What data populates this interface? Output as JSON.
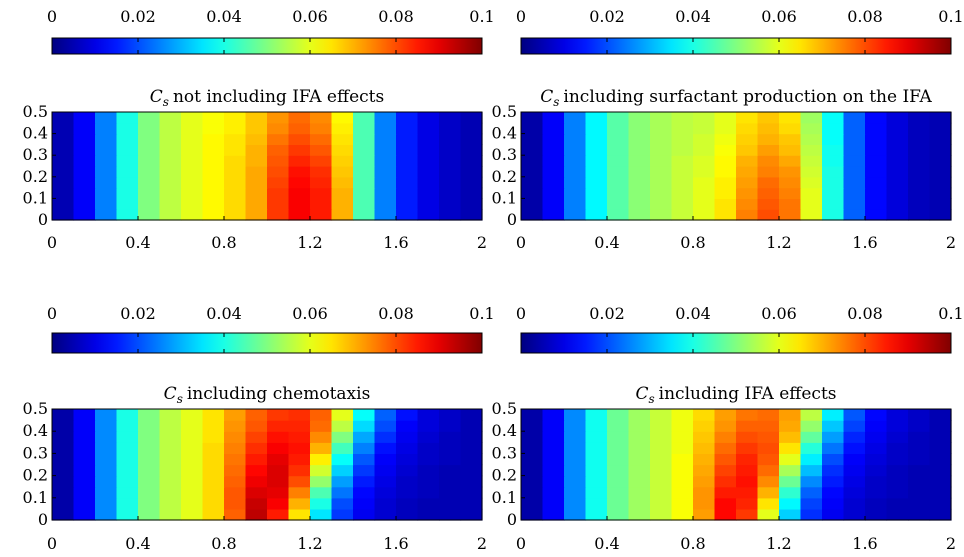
{
  "chart_data": [
    {
      "type": "heatmap",
      "title": "not including IFA effects",
      "title_symbol": "C",
      "title_subscript": "s",
      "xlim": [
        0,
        2
      ],
      "ylim": [
        0,
        0.5
      ],
      "xticks": [
        "0",
        "0.4",
        "0.8",
        "1.2",
        "1.6",
        "2"
      ],
      "yticks": [
        "0",
        "0.1",
        "0.2",
        "0.3",
        "0.4",
        "0.5"
      ],
      "colorbar": {
        "colormap": "jet",
        "range": [
          0,
          0.1
        ],
        "ticks": [
          "0",
          "0.02",
          "0.04",
          "0.06",
          "0.08",
          "0.1"
        ]
      },
      "x": [
        0.05,
        0.15,
        0.25,
        0.35,
        0.45,
        0.55,
        0.65,
        0.75,
        0.85,
        0.95,
        1.05,
        1.15,
        1.25,
        1.35,
        1.45,
        1.55,
        1.65,
        1.75,
        1.85,
        1.95
      ],
      "y": [
        0.025,
        0.075,
        0.125,
        0.175,
        0.225,
        0.275,
        0.325,
        0.375,
        0.425,
        0.475
      ],
      "z": [
        [
          0.005,
          0.012,
          0.025,
          0.04,
          0.05,
          0.056,
          0.06,
          0.063,
          0.066,
          0.071,
          0.082,
          0.088,
          0.085,
          0.07,
          0.045,
          0.025,
          0.015,
          0.01,
          0.007,
          0.005
        ],
        [
          0.005,
          0.012,
          0.025,
          0.04,
          0.05,
          0.056,
          0.06,
          0.063,
          0.066,
          0.071,
          0.082,
          0.088,
          0.085,
          0.07,
          0.045,
          0.025,
          0.015,
          0.01,
          0.007,
          0.005
        ],
        [
          0.005,
          0.012,
          0.025,
          0.04,
          0.05,
          0.056,
          0.06,
          0.063,
          0.066,
          0.071,
          0.082,
          0.088,
          0.085,
          0.07,
          0.045,
          0.025,
          0.015,
          0.01,
          0.007,
          0.005
        ],
        [
          0.005,
          0.012,
          0.025,
          0.04,
          0.05,
          0.056,
          0.06,
          0.063,
          0.066,
          0.071,
          0.081,
          0.087,
          0.084,
          0.069,
          0.045,
          0.025,
          0.015,
          0.01,
          0.007,
          0.005
        ],
        [
          0.005,
          0.012,
          0.025,
          0.04,
          0.05,
          0.056,
          0.06,
          0.063,
          0.066,
          0.071,
          0.08,
          0.086,
          0.083,
          0.068,
          0.045,
          0.025,
          0.015,
          0.01,
          0.007,
          0.005
        ],
        [
          0.005,
          0.012,
          0.025,
          0.04,
          0.05,
          0.056,
          0.06,
          0.063,
          0.066,
          0.07,
          0.079,
          0.084,
          0.081,
          0.067,
          0.045,
          0.025,
          0.015,
          0.01,
          0.007,
          0.005
        ],
        [
          0.005,
          0.012,
          0.025,
          0.04,
          0.05,
          0.056,
          0.06,
          0.063,
          0.065,
          0.07,
          0.078,
          0.082,
          0.079,
          0.066,
          0.045,
          0.025,
          0.015,
          0.01,
          0.007,
          0.005
        ],
        [
          0.005,
          0.012,
          0.025,
          0.04,
          0.05,
          0.056,
          0.06,
          0.063,
          0.065,
          0.069,
          0.076,
          0.08,
          0.077,
          0.065,
          0.045,
          0.025,
          0.015,
          0.01,
          0.007,
          0.005
        ],
        [
          0.005,
          0.012,
          0.025,
          0.04,
          0.05,
          0.056,
          0.06,
          0.062,
          0.064,
          0.068,
          0.074,
          0.078,
          0.075,
          0.064,
          0.045,
          0.025,
          0.015,
          0.01,
          0.007,
          0.005
        ],
        [
          0.005,
          0.012,
          0.025,
          0.04,
          0.05,
          0.056,
          0.06,
          0.062,
          0.064,
          0.068,
          0.073,
          0.077,
          0.074,
          0.063,
          0.045,
          0.025,
          0.015,
          0.01,
          0.007,
          0.005
        ]
      ]
    },
    {
      "type": "heatmap",
      "title": "including surfactant production on the IFA",
      "title_symbol": "C",
      "title_subscript": "s",
      "xlim": [
        0,
        2
      ],
      "ylim": [
        0,
        0.5
      ],
      "xticks": [
        "0",
        "0.4",
        "0.8",
        "1.2",
        "1.6",
        "2"
      ],
      "yticks": [
        "0",
        "0.1",
        "0.2",
        "0.3",
        "0.4",
        "0.5"
      ],
      "colorbar": {
        "colormap": "jet",
        "range": [
          0,
          0.1
        ],
        "ticks": [
          "0",
          "0.02",
          "0.04",
          "0.06",
          "0.08",
          "0.1"
        ]
      },
      "x": [
        0.05,
        0.15,
        0.25,
        0.35,
        0.45,
        0.55,
        0.65,
        0.75,
        0.85,
        0.95,
        1.05,
        1.15,
        1.25,
        1.35,
        1.45,
        1.55,
        1.65,
        1.75,
        1.85,
        1.95
      ],
      "y": [
        0.025,
        0.075,
        0.125,
        0.175,
        0.225,
        0.275,
        0.325,
        0.375,
        0.425,
        0.475
      ],
      "z": [
        [
          0.004,
          0.012,
          0.025,
          0.037,
          0.046,
          0.051,
          0.054,
          0.057,
          0.06,
          0.065,
          0.075,
          0.08,
          0.076,
          0.06,
          0.04,
          0.022,
          0.013,
          0.009,
          0.006,
          0.005
        ],
        [
          0.004,
          0.012,
          0.025,
          0.037,
          0.046,
          0.051,
          0.054,
          0.057,
          0.06,
          0.065,
          0.074,
          0.079,
          0.076,
          0.06,
          0.04,
          0.022,
          0.013,
          0.009,
          0.006,
          0.005
        ],
        [
          0.004,
          0.012,
          0.025,
          0.037,
          0.046,
          0.051,
          0.054,
          0.057,
          0.06,
          0.064,
          0.073,
          0.078,
          0.075,
          0.06,
          0.04,
          0.022,
          0.013,
          0.009,
          0.006,
          0.005
        ],
        [
          0.004,
          0.012,
          0.025,
          0.037,
          0.046,
          0.051,
          0.054,
          0.057,
          0.06,
          0.064,
          0.072,
          0.077,
          0.074,
          0.059,
          0.04,
          0.022,
          0.013,
          0.009,
          0.006,
          0.005
        ],
        [
          0.004,
          0.012,
          0.025,
          0.037,
          0.046,
          0.051,
          0.054,
          0.057,
          0.059,
          0.063,
          0.071,
          0.075,
          0.073,
          0.058,
          0.04,
          0.022,
          0.013,
          0.009,
          0.006,
          0.005
        ],
        [
          0.004,
          0.012,
          0.025,
          0.037,
          0.046,
          0.051,
          0.054,
          0.057,
          0.059,
          0.063,
          0.07,
          0.074,
          0.071,
          0.057,
          0.039,
          0.022,
          0.013,
          0.009,
          0.006,
          0.005
        ],
        [
          0.004,
          0.012,
          0.025,
          0.037,
          0.046,
          0.051,
          0.054,
          0.056,
          0.058,
          0.062,
          0.068,
          0.072,
          0.069,
          0.056,
          0.039,
          0.022,
          0.013,
          0.009,
          0.006,
          0.005
        ],
        [
          0.004,
          0.012,
          0.025,
          0.037,
          0.046,
          0.051,
          0.054,
          0.056,
          0.058,
          0.061,
          0.067,
          0.07,
          0.068,
          0.055,
          0.038,
          0.022,
          0.013,
          0.009,
          0.006,
          0.005
        ],
        [
          0.004,
          0.012,
          0.025,
          0.037,
          0.046,
          0.051,
          0.054,
          0.056,
          0.057,
          0.06,
          0.066,
          0.069,
          0.066,
          0.054,
          0.038,
          0.022,
          0.013,
          0.009,
          0.006,
          0.005
        ],
        [
          0.004,
          0.012,
          0.025,
          0.037,
          0.046,
          0.051,
          0.054,
          0.056,
          0.057,
          0.06,
          0.065,
          0.068,
          0.065,
          0.053,
          0.038,
          0.022,
          0.013,
          0.009,
          0.006,
          0.005
        ]
      ]
    },
    {
      "type": "heatmap",
      "title": "including chemotaxis",
      "title_symbol": "C",
      "title_subscript": "s",
      "xlim": [
        0,
        2
      ],
      "ylim": [
        0,
        0.5
      ],
      "xticks": [
        "0",
        "0.4",
        "0.8",
        "1.2",
        "1.6",
        "2"
      ],
      "yticks": [
        "0",
        "0.1",
        "0.2",
        "0.3",
        "0.4",
        "0.5"
      ],
      "colorbar": {
        "colormap": "jet",
        "range": [
          0,
          0.1
        ],
        "ticks": [
          "0",
          "0.02",
          "0.04",
          "0.06",
          "0.08",
          "0.1"
        ]
      },
      "x": [
        0.05,
        0.15,
        0.25,
        0.35,
        0.45,
        0.55,
        0.65,
        0.75,
        0.85,
        0.95,
        1.05,
        1.15,
        1.25,
        1.35,
        1.45,
        1.55,
        1.65,
        1.75,
        1.85,
        1.95
      ],
      "y": [
        0.025,
        0.075,
        0.125,
        0.175,
        0.225,
        0.275,
        0.325,
        0.375,
        0.425,
        0.475
      ],
      "z": [
        [
          0.004,
          0.012,
          0.026,
          0.04,
          0.05,
          0.056,
          0.06,
          0.066,
          0.078,
          0.094,
          0.085,
          0.065,
          0.035,
          0.018,
          0.011,
          0.008,
          0.006,
          0.005,
          0.005,
          0.005
        ],
        [
          0.004,
          0.012,
          0.026,
          0.04,
          0.05,
          0.056,
          0.06,
          0.066,
          0.079,
          0.093,
          0.088,
          0.07,
          0.04,
          0.02,
          0.012,
          0.008,
          0.006,
          0.005,
          0.005,
          0.005
        ],
        [
          0.004,
          0.012,
          0.026,
          0.04,
          0.05,
          0.056,
          0.06,
          0.066,
          0.079,
          0.091,
          0.09,
          0.075,
          0.045,
          0.024,
          0.013,
          0.009,
          0.007,
          0.006,
          0.005,
          0.005
        ],
        [
          0.004,
          0.012,
          0.026,
          0.04,
          0.05,
          0.056,
          0.06,
          0.066,
          0.078,
          0.089,
          0.091,
          0.08,
          0.052,
          0.028,
          0.015,
          0.01,
          0.007,
          0.006,
          0.005,
          0.005
        ],
        [
          0.004,
          0.012,
          0.026,
          0.04,
          0.05,
          0.056,
          0.06,
          0.066,
          0.077,
          0.087,
          0.091,
          0.083,
          0.058,
          0.033,
          0.018,
          0.011,
          0.008,
          0.006,
          0.005,
          0.005
        ],
        [
          0.004,
          0.012,
          0.026,
          0.04,
          0.05,
          0.056,
          0.06,
          0.066,
          0.076,
          0.085,
          0.09,
          0.085,
          0.064,
          0.038,
          0.021,
          0.012,
          0.009,
          0.007,
          0.006,
          0.005
        ],
        [
          0.004,
          0.012,
          0.026,
          0.04,
          0.05,
          0.056,
          0.06,
          0.066,
          0.075,
          0.083,
          0.088,
          0.086,
          0.07,
          0.044,
          0.025,
          0.014,
          0.01,
          0.007,
          0.006,
          0.005
        ],
        [
          0.004,
          0.012,
          0.026,
          0.04,
          0.05,
          0.056,
          0.06,
          0.065,
          0.074,
          0.081,
          0.086,
          0.085,
          0.074,
          0.05,
          0.029,
          0.017,
          0.011,
          0.008,
          0.006,
          0.005
        ],
        [
          0.004,
          0.012,
          0.026,
          0.04,
          0.05,
          0.056,
          0.06,
          0.065,
          0.073,
          0.079,
          0.084,
          0.084,
          0.077,
          0.056,
          0.034,
          0.02,
          0.012,
          0.009,
          0.007,
          0.005
        ],
        [
          0.004,
          0.012,
          0.026,
          0.04,
          0.05,
          0.056,
          0.06,
          0.065,
          0.072,
          0.078,
          0.082,
          0.083,
          0.078,
          0.06,
          0.038,
          0.022,
          0.014,
          0.009,
          0.007,
          0.005
        ]
      ]
    },
    {
      "type": "heatmap",
      "title": "including IFA effects",
      "title_symbol": "C",
      "title_subscript": "s",
      "xlim": [
        0,
        2
      ],
      "ylim": [
        0,
        0.5
      ],
      "xticks": [
        "0",
        "0.4",
        "0.8",
        "1.2",
        "1.6",
        "2"
      ],
      "yticks": [
        "0",
        "0.1",
        "0.2",
        "0.3",
        "0.4",
        "0.5"
      ],
      "colorbar": {
        "colormap": "jet",
        "range": [
          0,
          0.1
        ],
        "ticks": [
          "0",
          "0.02",
          "0.04",
          "0.06",
          "0.08",
          "0.1"
        ]
      },
      "x": [
        0.05,
        0.15,
        0.25,
        0.35,
        0.45,
        0.55,
        0.65,
        0.75,
        0.85,
        0.95,
        1.05,
        1.15,
        1.25,
        1.35,
        1.45,
        1.55,
        1.65,
        1.75,
        1.85,
        1.95
      ],
      "y": [
        0.025,
        0.075,
        0.125,
        0.175,
        0.225,
        0.275,
        0.325,
        0.375,
        0.425,
        0.475
      ],
      "z": [
        [
          0.004,
          0.012,
          0.026,
          0.039,
          0.048,
          0.053,
          0.057,
          0.062,
          0.072,
          0.087,
          0.082,
          0.06,
          0.033,
          0.017,
          0.011,
          0.008,
          0.006,
          0.005,
          0.005,
          0.005
        ],
        [
          0.004,
          0.012,
          0.026,
          0.039,
          0.048,
          0.053,
          0.057,
          0.062,
          0.073,
          0.087,
          0.084,
          0.065,
          0.037,
          0.019,
          0.012,
          0.008,
          0.006,
          0.005,
          0.005,
          0.005
        ],
        [
          0.004,
          0.012,
          0.026,
          0.039,
          0.048,
          0.053,
          0.057,
          0.062,
          0.073,
          0.085,
          0.085,
          0.07,
          0.042,
          0.022,
          0.013,
          0.009,
          0.007,
          0.006,
          0.005,
          0.005
        ],
        [
          0.004,
          0.012,
          0.026,
          0.039,
          0.048,
          0.053,
          0.057,
          0.062,
          0.072,
          0.083,
          0.086,
          0.074,
          0.048,
          0.026,
          0.015,
          0.01,
          0.007,
          0.006,
          0.005,
          0.005
        ],
        [
          0.004,
          0.012,
          0.026,
          0.039,
          0.048,
          0.053,
          0.057,
          0.062,
          0.071,
          0.081,
          0.085,
          0.077,
          0.054,
          0.031,
          0.017,
          0.011,
          0.008,
          0.006,
          0.005,
          0.005
        ],
        [
          0.004,
          0.012,
          0.026,
          0.039,
          0.048,
          0.053,
          0.057,
          0.062,
          0.07,
          0.079,
          0.084,
          0.079,
          0.06,
          0.036,
          0.02,
          0.012,
          0.009,
          0.007,
          0.006,
          0.005
        ],
        [
          0.004,
          0.012,
          0.026,
          0.039,
          0.048,
          0.053,
          0.057,
          0.061,
          0.069,
          0.077,
          0.082,
          0.08,
          0.065,
          0.041,
          0.024,
          0.014,
          0.01,
          0.007,
          0.006,
          0.005
        ],
        [
          0.004,
          0.012,
          0.026,
          0.039,
          0.048,
          0.053,
          0.057,
          0.061,
          0.068,
          0.075,
          0.08,
          0.079,
          0.069,
          0.047,
          0.028,
          0.016,
          0.011,
          0.008,
          0.006,
          0.005
        ],
        [
          0.004,
          0.012,
          0.026,
          0.039,
          0.048,
          0.053,
          0.057,
          0.061,
          0.067,
          0.073,
          0.078,
          0.078,
          0.071,
          0.052,
          0.032,
          0.019,
          0.012,
          0.009,
          0.007,
          0.005
        ],
        [
          0.004,
          0.012,
          0.026,
          0.039,
          0.048,
          0.053,
          0.057,
          0.061,
          0.066,
          0.072,
          0.076,
          0.077,
          0.072,
          0.056,
          0.036,
          0.021,
          0.013,
          0.009,
          0.007,
          0.005
        ]
      ]
    }
  ]
}
